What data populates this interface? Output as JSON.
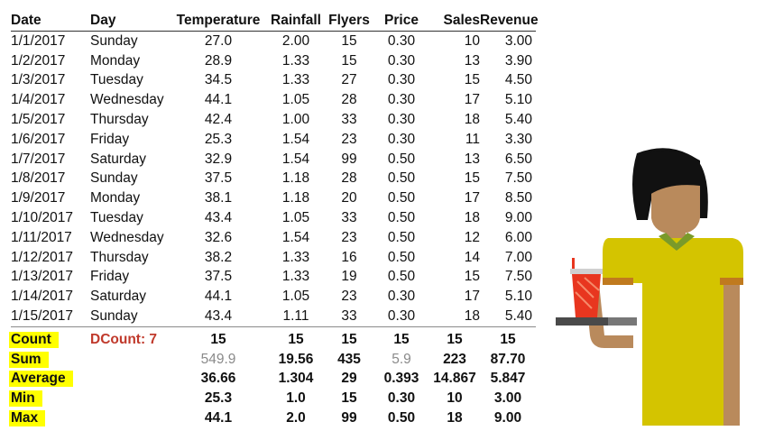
{
  "headers": [
    "Date",
    "Day",
    "Temperature",
    "Rainfall",
    "Flyers",
    "Price",
    "Sales",
    "Revenue"
  ],
  "rows": [
    [
      "1/1/2017",
      "Sunday",
      "27.0",
      "2.00",
      "15",
      "0.30",
      "10",
      "3.00"
    ],
    [
      "1/2/2017",
      "Monday",
      "28.9",
      "1.33",
      "15",
      "0.30",
      "13",
      "3.90"
    ],
    [
      "1/3/2017",
      "Tuesday",
      "34.5",
      "1.33",
      "27",
      "0.30",
      "15",
      "4.50"
    ],
    [
      "1/4/2017",
      "Wednesday",
      "44.1",
      "1.05",
      "28",
      "0.30",
      "17",
      "5.10"
    ],
    [
      "1/5/2017",
      "Thursday",
      "42.4",
      "1.00",
      "33",
      "0.30",
      "18",
      "5.40"
    ],
    [
      "1/6/2017",
      "Friday",
      "25.3",
      "1.54",
      "23",
      "0.30",
      "11",
      "3.30"
    ],
    [
      "1/7/2017",
      "Saturday",
      "32.9",
      "1.54",
      "99",
      "0.50",
      "13",
      "6.50"
    ],
    [
      "1/8/2017",
      "Sunday",
      "37.5",
      "1.18",
      "28",
      "0.50",
      "15",
      "7.50"
    ],
    [
      "1/9/2017",
      "Monday",
      "38.1",
      "1.18",
      "20",
      "0.50",
      "17",
      "8.50"
    ],
    [
      "1/10/2017",
      "Tuesday",
      "43.4",
      "1.05",
      "33",
      "0.50",
      "18",
      "9.00"
    ],
    [
      "1/11/2017",
      "Wednesday",
      "32.6",
      "1.54",
      "23",
      "0.50",
      "12",
      "6.00"
    ],
    [
      "1/12/2017",
      "Thursday",
      "38.2",
      "1.33",
      "16",
      "0.50",
      "14",
      "7.00"
    ],
    [
      "1/13/2017",
      "Friday",
      "37.5",
      "1.33",
      "19",
      "0.50",
      "15",
      "7.50"
    ],
    [
      "1/14/2017",
      "Saturday",
      "44.1",
      "1.05",
      "23",
      "0.30",
      "17",
      "5.10"
    ],
    [
      "1/15/2017",
      "Sunday",
      "43.4",
      "1.11",
      "33",
      "0.30",
      "18",
      "5.40"
    ]
  ],
  "stats": {
    "count": {
      "label": "Count",
      "dcount": "DCount: 7",
      "values": [
        "15",
        "15",
        "15",
        "15",
        "15",
        "15"
      ]
    },
    "sum": {
      "label": "Sum",
      "values": [
        "549.9",
        "19.56",
        "435",
        "5.9",
        "223",
        "87.70"
      ],
      "muted": [
        true,
        false,
        false,
        true,
        false,
        false
      ]
    },
    "average": {
      "label": "Average",
      "values": [
        "36.66",
        "1.304",
        "29",
        "0.393",
        "14.867",
        "5.847"
      ]
    },
    "min": {
      "label": "Min",
      "values": [
        "25.3",
        "1.0",
        "15",
        "0.30",
        "10",
        "3.00"
      ]
    },
    "max": {
      "label": "Max",
      "values": [
        "44.1",
        "2.0",
        "99",
        "0.50",
        "18",
        "9.00"
      ]
    }
  },
  "colors": {
    "highlight": "#ffff00",
    "dcount": "#c0392b",
    "muted": "#8a8a8a",
    "shirt": "#d4c400",
    "skin": "#b98a5c",
    "hair": "#111111",
    "collar": "#7a9a2a",
    "cup": "#e8361f",
    "tray": "#4a4a4a"
  },
  "icons": [
    "lemonade-vendor-illustration",
    "drink-cup-icon",
    "serving-tray-icon"
  ]
}
